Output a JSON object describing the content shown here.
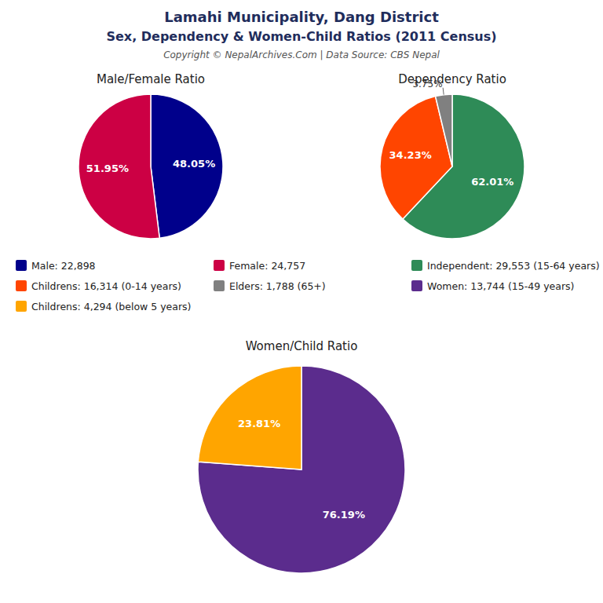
{
  "title": "Lamahi Municipality, Dang District",
  "subtitle": "Sex, Dependency & Women-Child Ratios (2011 Census)",
  "annotations": [
    "Copyright © NepalArchives.Com | Data Source: CBS Nepal"
  ],
  "chart_data": [
    {
      "type": "pie",
      "title": "Male/Female Ratio",
      "categories": [
        "Male: 22,898",
        "Female: 24,757"
      ],
      "values": [
        48.05,
        51.95
      ],
      "value_labels": [
        "48.05%",
        "51.95%"
      ],
      "colors": [
        "#00008B",
        "#CC0044"
      ],
      "data_labels": true,
      "legend": "center"
    },
    {
      "type": "pie",
      "title": "Dependency Ratio",
      "categories": [
        "Independent: 29,553 (15-64 years)",
        "Childrens: 16,314 (0-14 years)",
        "Elders: 1,788 (65+)"
      ],
      "values": [
        62.01,
        34.23,
        3.75
      ],
      "value_labels": [
        "62.01%",
        "34.23%",
        "3.75%"
      ],
      "colors": [
        "#2E8B57",
        "#FF4500",
        "#808080"
      ],
      "data_labels": true,
      "legend": "center"
    },
    {
      "type": "pie",
      "title": "Women/Child Ratio",
      "categories": [
        "Women: 13,744 (15-49 years)",
        "Childrens: 4,294 (below 5 years)"
      ],
      "values": [
        76.19,
        23.81
      ],
      "value_labels": [
        "76.19%",
        "23.81%"
      ],
      "colors": [
        "#5B2C8D",
        "#FFA500"
      ],
      "data_labels": true,
      "legend": "center"
    }
  ]
}
